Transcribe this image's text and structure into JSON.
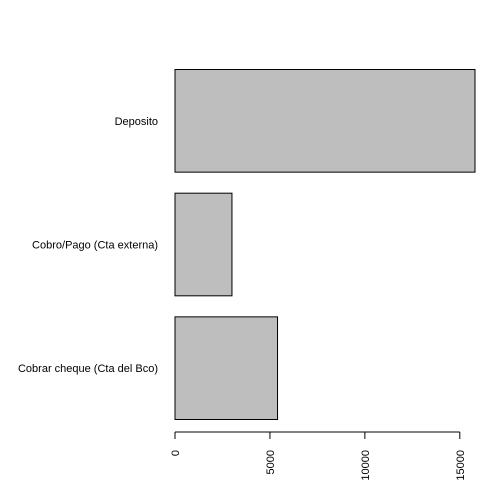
{
  "chart_data": {
    "type": "bar",
    "orientation": "horizontal",
    "categories": [
      "Cobrar cheque (Cta del Bco)",
      "Cobro/Pago (Cta externa)",
      "Deposito"
    ],
    "values": [
      5400,
      3000,
      15800
    ],
    "title": "",
    "xlabel": "",
    "ylabel": "",
    "xlim": [
      0,
      15800
    ],
    "xticks": [
      0,
      5000,
      10000,
      15000
    ],
    "xtick_labels": [
      "0",
      "5000",
      "10000",
      "15000"
    ],
    "grid": false,
    "legend": "none",
    "colors": {
      "bar_fill": "#bebebe",
      "bar_stroke": "#000000",
      "axis": "#000000",
      "background": "#ffffff"
    }
  }
}
